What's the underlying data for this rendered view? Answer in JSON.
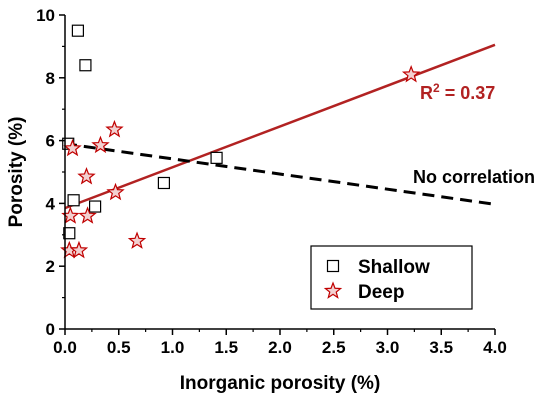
{
  "chart_data": {
    "type": "scatter",
    "xlabel": "Inorganic porosity (%)",
    "ylabel": "Porosity (%)",
    "xlim": [
      0.0,
      4.0
    ],
    "ylim": [
      0,
      10
    ],
    "x_ticks": [
      "0.0",
      "0.5",
      "1.0",
      "1.5",
      "2.0",
      "2.5",
      "3.0",
      "3.5",
      "4.0"
    ],
    "y_ticks": [
      "0",
      "2",
      "4",
      "6",
      "8",
      "10"
    ],
    "grid": false,
    "legend_position": "bottom-right",
    "series": [
      {
        "name": "Shallow",
        "marker": "square",
        "color": "#000000",
        "points": [
          {
            "x": 0.12,
            "y": 9.5
          },
          {
            "x": 0.19,
            "y": 8.4
          },
          {
            "x": 0.03,
            "y": 5.9
          },
          {
            "x": 0.08,
            "y": 4.1
          },
          {
            "x": 0.28,
            "y": 3.9
          },
          {
            "x": 0.04,
            "y": 3.05
          },
          {
            "x": 0.92,
            "y": 4.65
          },
          {
            "x": 1.41,
            "y": 5.45
          }
        ]
      },
      {
        "name": "Deep",
        "marker": "star",
        "color": "#c00000",
        "fill": "#f2d0d0",
        "points": [
          {
            "x": 0.07,
            "y": 5.75
          },
          {
            "x": 0.33,
            "y": 5.85
          },
          {
            "x": 0.46,
            "y": 6.35
          },
          {
            "x": 0.2,
            "y": 4.85
          },
          {
            "x": 0.47,
            "y": 4.35
          },
          {
            "x": 0.05,
            "y": 3.6
          },
          {
            "x": 0.21,
            "y": 3.6
          },
          {
            "x": 0.04,
            "y": 2.5
          },
          {
            "x": 0.13,
            "y": 2.5
          },
          {
            "x": 0.67,
            "y": 2.8
          },
          {
            "x": 3.22,
            "y": 8.1
          }
        ]
      }
    ],
    "lines": [
      {
        "style": "solid",
        "color": "#b22222",
        "x": [
          0.0,
          4.0
        ],
        "y": [
          3.85,
          9.05
        ]
      },
      {
        "style": "dashed",
        "color": "#000000",
        "x": [
          0.0,
          4.0
        ],
        "y": [
          5.9,
          3.97
        ]
      }
    ],
    "annotations": {
      "r2_prefix": "R",
      "r2_sup": "2",
      "r2_value": " = 0.37",
      "r2_color": "#b22222",
      "no_correlation": "No correlation"
    }
  }
}
